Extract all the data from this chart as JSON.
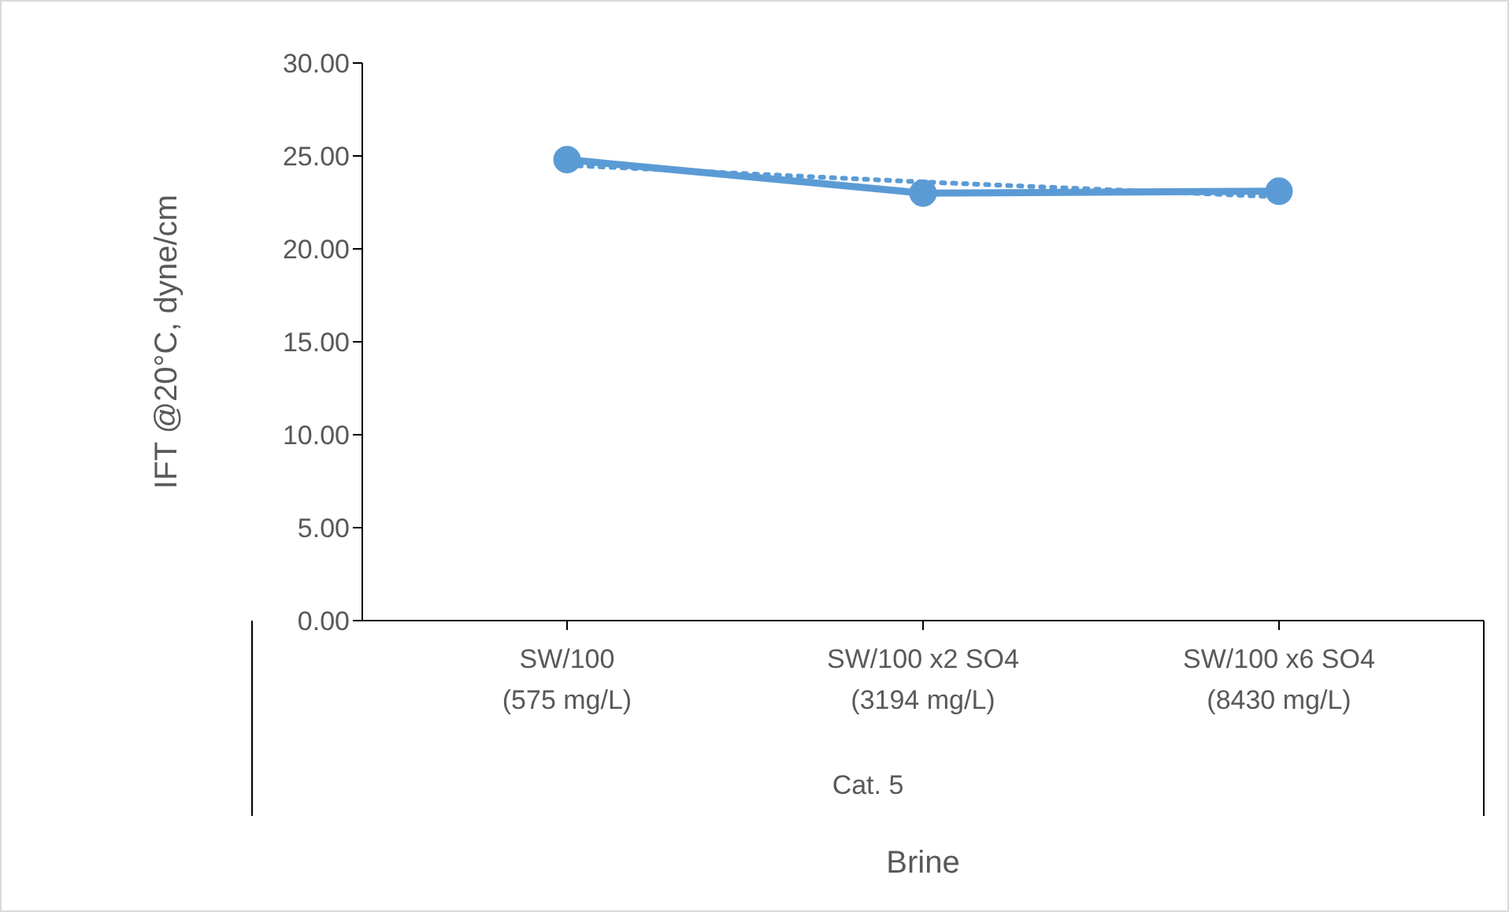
{
  "chart_data": {
    "type": "line",
    "xlabel": "Brine",
    "ylabel": "IFT @20°C, dyne/cm",
    "categories": [
      "SW/100\n(575 mg/L)",
      "SW/100 x2 SO4\n(3194 mg/L)",
      "SW/100 x6 SO4\n(8430 mg/L)"
    ],
    "annotations": [
      "Cat. 5"
    ],
    "series": [
      {
        "color": "#5b9bd5",
        "values": [
          24.8,
          23.0,
          23.1
        ],
        "marker": "circle",
        "line_style": "solid"
      },
      {
        "type": "line",
        "color": "#5b9bd5",
        "values": [
          24.5,
          23.6,
          22.8
        ],
        "marker": "none",
        "line_style": "dotted"
      }
    ],
    "ylim": [
      0,
      30
    ],
    "yticks": [
      {
        "value": 0,
        "label": "0.00"
      },
      {
        "value": 5,
        "label": "5.00"
      },
      {
        "value": 10,
        "label": "10.00"
      },
      {
        "value": 15,
        "label": "15.00"
      },
      {
        "value": 20,
        "label": "20.00"
      },
      {
        "value": 25,
        "label": "25.00"
      },
      {
        "value": 30,
        "label": "30.00"
      }
    ],
    "grid": false,
    "legend": false
  }
}
